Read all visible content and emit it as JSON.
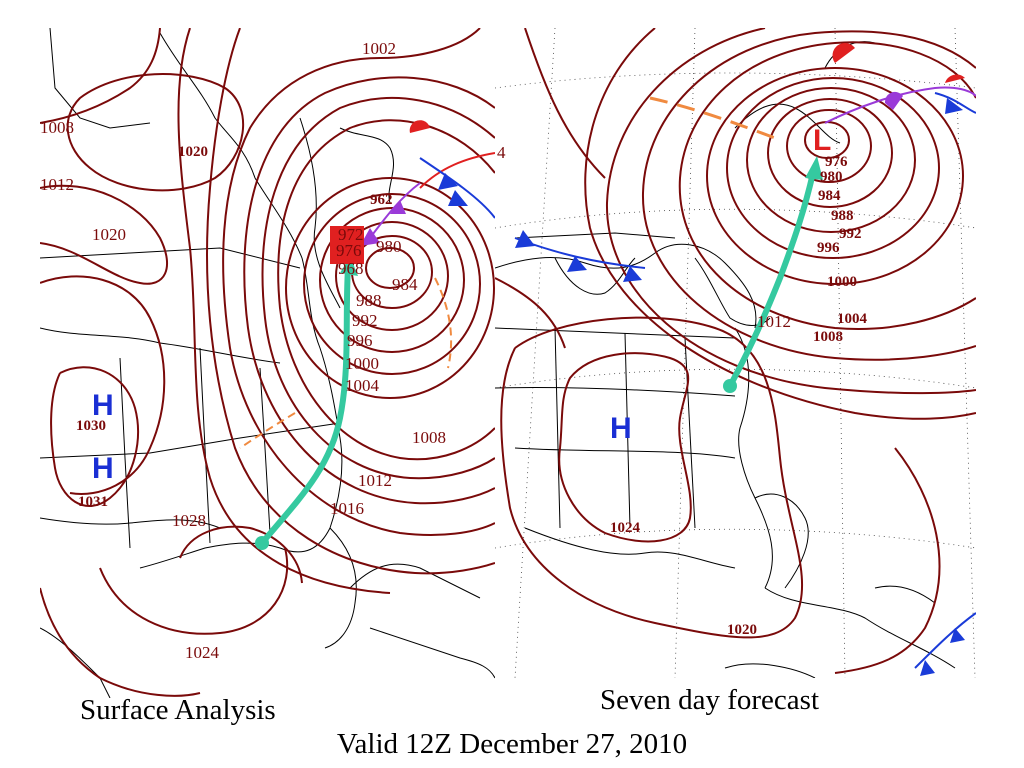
{
  "panels": {
    "left": {
      "caption": "Surface Analysis",
      "high_centers": [
        {
          "symbol": "H",
          "pressure": "1020"
        },
        {
          "symbol": "H",
          "pressure": "1030"
        },
        {
          "symbol": "H",
          "pressure": "1031"
        }
      ],
      "low_center_pressure": "962",
      "isobar_labels": [
        "1008",
        "1012",
        "1020",
        "1024",
        "1028",
        "1016",
        "1012",
        "1008",
        "1004",
        "1000",
        "996",
        "992",
        "988",
        "984",
        "980",
        "976",
        "972",
        "968",
        "1002",
        "1024"
      ]
    },
    "right": {
      "caption": "Seven day forecast",
      "high_center": {
        "symbol": "H",
        "pressure": "1024"
      },
      "low_center": {
        "symbol": "L"
      },
      "isobar_labels": [
        "976",
        "980",
        "984",
        "988",
        "992",
        "996",
        "1000",
        "1004",
        "1008",
        "1012",
        "1020",
        "4"
      ]
    }
  },
  "footer": {
    "valid_text": "Valid 12Z December 27, 2010"
  },
  "colors": {
    "isobar": "#7a0a0a",
    "high": "#1a2fd4",
    "low": "#e02020",
    "storm_track": "#35c9a0",
    "cold_front": "#1a3bd8",
    "warm_front": "#e02020",
    "occluded_front": "#9a3ad8",
    "trough": "#f08a40"
  }
}
